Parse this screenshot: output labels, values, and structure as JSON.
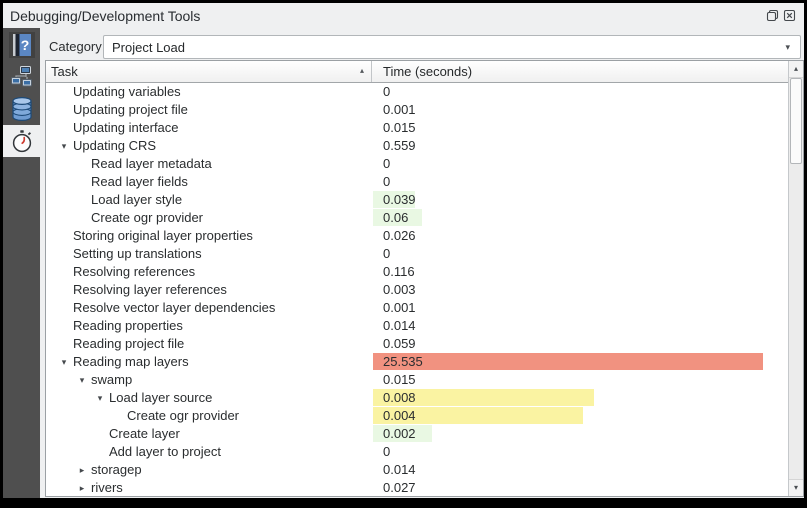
{
  "window": {
    "title": "Debugging/Development Tools"
  },
  "toolbar": {
    "category_label": "Category",
    "category_value": "Project Load"
  },
  "sidebar": {
    "items": [
      {
        "id": "help",
        "icon": "help-book-icon",
        "selected": false
      },
      {
        "id": "network-logger",
        "icon": "network-icon",
        "selected": false
      },
      {
        "id": "query-logger",
        "icon": "database-icon",
        "selected": false
      },
      {
        "id": "profiler",
        "icon": "stopwatch-icon",
        "selected": true
      }
    ]
  },
  "icons": {
    "expanded": "▾",
    "collapsed": "▸",
    "sort_asc": "▴",
    "combo_arrow": "▾",
    "scroll_up": "▴",
    "scroll_down": "▾"
  },
  "colors": {
    "panel": "#eff0f1",
    "sidebar": "#4f4f4f",
    "bar_red": "#f19280",
    "bar_yellow": "#faf3a2",
    "bar_green": "#e9f8e3"
  },
  "table": {
    "columns": [
      {
        "label": "Task",
        "sort": "asc"
      },
      {
        "label": "Time (seconds)"
      }
    ],
    "rows": [
      {
        "label": "Updating variables",
        "value": "0",
        "level": 1,
        "expander": null,
        "bar": null
      },
      {
        "label": "Updating project file",
        "value": "0.001",
        "level": 1,
        "expander": null,
        "bar": null
      },
      {
        "label": "Updating interface",
        "value": "0.015",
        "level": 1,
        "expander": null,
        "bar": null
      },
      {
        "label": "Updating CRS",
        "value": "0.559",
        "level": 1,
        "expander": "expanded",
        "bar": null
      },
      {
        "label": "Read layer metadata",
        "value": "0",
        "level": 2,
        "expander": null,
        "bar": null
      },
      {
        "label": "Read layer fields",
        "value": "0",
        "level": 2,
        "expander": null,
        "bar": null
      },
      {
        "label": "Load layer style",
        "value": "0.039",
        "level": 2,
        "expander": null,
        "bar": {
          "color": "green",
          "width_pct": 10.0
        }
      },
      {
        "label": "Create ogr provider",
        "value": "0.06",
        "level": 2,
        "expander": null,
        "bar": {
          "color": "green",
          "width_pct": 11.7
        }
      },
      {
        "label": "Storing original layer properties",
        "value": "0.026",
        "level": 1,
        "expander": null,
        "bar": null
      },
      {
        "label": "Setting up translations",
        "value": "0",
        "level": 1,
        "expander": null,
        "bar": null
      },
      {
        "label": "Resolving references",
        "value": "0.116",
        "level": 1,
        "expander": null,
        "bar": null
      },
      {
        "label": "Resolving layer references",
        "value": "0.003",
        "level": 1,
        "expander": null,
        "bar": null
      },
      {
        "label": "Resolve vector layer dependencies",
        "value": "0.001",
        "level": 1,
        "expander": null,
        "bar": null
      },
      {
        "label": "Reading properties",
        "value": "0.014",
        "level": 1,
        "expander": null,
        "bar": null
      },
      {
        "label": "Reading project file",
        "value": "0.059",
        "level": 1,
        "expander": null,
        "bar": null
      },
      {
        "label": "Reading map layers",
        "value": "25.535",
        "level": 1,
        "expander": "expanded",
        "bar": {
          "color": "red",
          "width_pct": 93.8
        }
      },
      {
        "label": "swamp",
        "value": "0.015",
        "level": 2,
        "expander": "expanded",
        "bar": null
      },
      {
        "label": "Load layer source",
        "value": "0.008",
        "level": 3,
        "expander": "expanded",
        "bar": {
          "color": "yellow",
          "width_pct": 53.1
        }
      },
      {
        "label": "Create ogr provider",
        "value": "0.004",
        "level": 4,
        "expander": null,
        "bar": {
          "color": "yellow",
          "width_pct": 50.5
        }
      },
      {
        "label": "Create layer",
        "value": "0.002",
        "level": 3,
        "expander": null,
        "bar": {
          "color": "green",
          "width_pct": 14.1
        }
      },
      {
        "label": "Add layer to project",
        "value": "0",
        "level": 3,
        "expander": null,
        "bar": null
      },
      {
        "label": "storagep",
        "value": "0.014",
        "level": 2,
        "expander": "collapsed",
        "bar": null
      },
      {
        "label": "rivers",
        "value": "0.027",
        "level": 2,
        "expander": "collapsed",
        "bar": null
      }
    ]
  }
}
